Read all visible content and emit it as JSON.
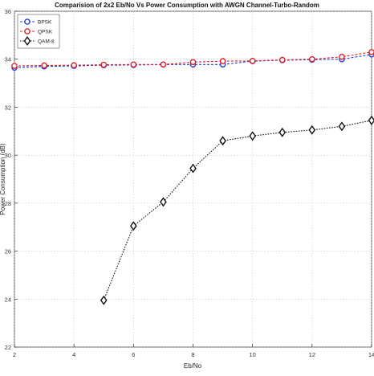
{
  "chart_data": {
    "type": "line",
    "title": "Comparision of 2x2 Eb/No Vs Power Consumption with AWGN Channel-Turbo-Random",
    "xlabel": "Eb/No",
    "ylabel": "Power Consumption (dB)",
    "xlim": [
      2,
      14
    ],
    "ylim": [
      22,
      36
    ],
    "xticks": [
      2,
      4,
      6,
      8,
      10,
      12,
      14
    ],
    "yticks": [
      22,
      24,
      26,
      28,
      30,
      32,
      34,
      36
    ],
    "grid": true,
    "legend_position": "top-left",
    "series": [
      {
        "name": "BPSK",
        "color": "#1f3fd8",
        "marker": "circle",
        "line_style": "dashed",
        "x": [
          2,
          3,
          4,
          5,
          6,
          7,
          8,
          9,
          10,
          11,
          12,
          13,
          14
        ],
        "y": [
          33.65,
          33.7,
          33.72,
          33.75,
          33.76,
          33.78,
          33.78,
          33.78,
          33.92,
          33.96,
          33.98,
          34.0,
          34.2
        ]
      },
      {
        "name": "QPSK",
        "color": "#e0202a",
        "marker": "circle",
        "line_style": "dashed",
        "x": [
          2,
          3,
          4,
          5,
          6,
          7,
          8,
          9,
          10,
          11,
          12,
          13,
          14
        ],
        "y": [
          33.72,
          33.74,
          33.75,
          33.77,
          33.78,
          33.78,
          33.88,
          33.92,
          33.93,
          33.97,
          34.0,
          34.1,
          34.3
        ]
      },
      {
        "name": "QAM-8",
        "color": "#111111",
        "marker": "diamond",
        "line_style": "dotted",
        "x": [
          5,
          6,
          7,
          8,
          9,
          10,
          11,
          12,
          13,
          14
        ],
        "y": [
          23.95,
          27.05,
          28.05,
          29.45,
          30.6,
          30.8,
          30.95,
          31.05,
          31.2,
          31.45
        ]
      }
    ]
  }
}
